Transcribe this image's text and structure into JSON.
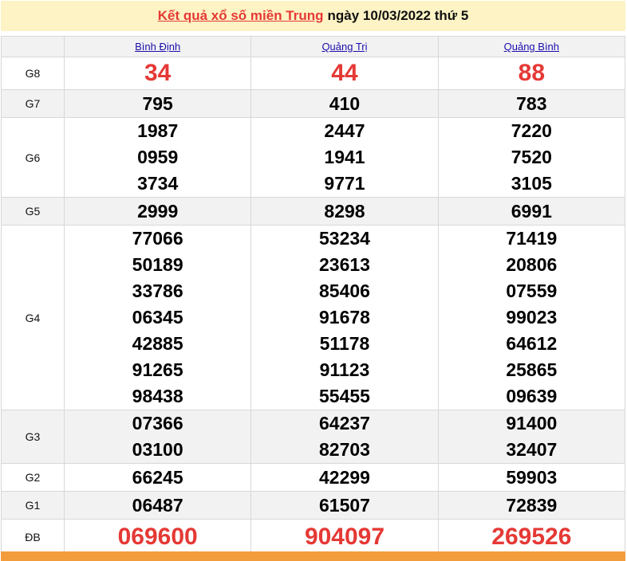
{
  "header": {
    "link": "Kết quả xổ số miền Trung",
    "rest": "ngày 10/03/2022 thứ 5"
  },
  "provinces": [
    "Bình Định",
    "Quảng Trị",
    "Quảng Bình"
  ],
  "colors": {
    "accent": "#e53935",
    "header_bg": "#fdf3c4",
    "footer_bar": "#f39c3c"
  },
  "rows": [
    {
      "label": "G8",
      "values": [
        [
          "34"
        ],
        [
          "44"
        ],
        [
          "88"
        ]
      ]
    },
    {
      "label": "G7",
      "values": [
        [
          "795"
        ],
        [
          "410"
        ],
        [
          "783"
        ]
      ]
    },
    {
      "label": "G6",
      "values": [
        [
          "1987",
          "0959",
          "3734"
        ],
        [
          "2447",
          "1941",
          "9771"
        ],
        [
          "7220",
          "7520",
          "3105"
        ]
      ]
    },
    {
      "label": "G5",
      "values": [
        [
          "2999"
        ],
        [
          "8298"
        ],
        [
          "6991"
        ]
      ]
    },
    {
      "label": "G4",
      "values": [
        [
          "77066",
          "50189",
          "33786",
          "06345",
          "42885",
          "91265",
          "98438"
        ],
        [
          "53234",
          "23613",
          "85406",
          "91678",
          "51178",
          "91123",
          "55455"
        ],
        [
          "71419",
          "20806",
          "07559",
          "99023",
          "64612",
          "25865",
          "09639"
        ]
      ]
    },
    {
      "label": "G3",
      "values": [
        [
          "07366",
          "03100"
        ],
        [
          "64237",
          "82703"
        ],
        [
          "91400",
          "32407"
        ]
      ]
    },
    {
      "label": "G2",
      "values": [
        [
          "66245"
        ],
        [
          "42299"
        ],
        [
          "59903"
        ]
      ]
    },
    {
      "label": "G1",
      "values": [
        [
          "06487"
        ],
        [
          "61507"
        ],
        [
          "72839"
        ]
      ]
    },
    {
      "label": "ĐB",
      "values": [
        [
          "069600"
        ],
        [
          "904097"
        ],
        [
          "269526"
        ]
      ]
    }
  ]
}
